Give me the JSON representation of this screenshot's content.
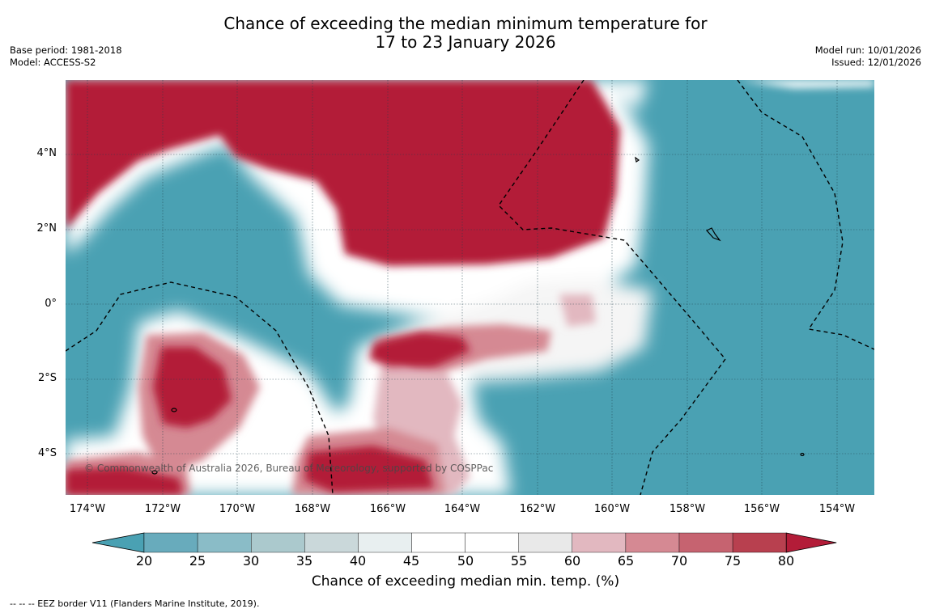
{
  "title": {
    "line1": "Chance of exceeding the median minimum temperature for",
    "line2": "17 to 23 January 2026"
  },
  "meta": {
    "base_period": "Base period: 1981-2018",
    "model": "Model: ACCESS-S2",
    "model_run": "Model run: 10/01/2026",
    "issued": "Issued: 12/01/2026"
  },
  "map": {
    "copyright": "© Commonwealth of Australia 2026, Bureau of Meteorology, supported by COSPPac",
    "lat_labels": [
      "4°N",
      "2°N",
      "0°",
      "2°S",
      "4°S"
    ],
    "lon_labels": [
      "174°W",
      "172°W",
      "170°W",
      "168°W",
      "166°W",
      "164°W",
      "162°W",
      "160°W",
      "158°W",
      "156°W",
      "154°W"
    ],
    "colors": {
      "below": "#4aa1b3",
      "above": "#b31c38",
      "neutral": "#ffffff"
    }
  },
  "colorbar": {
    "label": "Chance of exceeding median min. temp. (%)",
    "ticks": [
      "20",
      "25",
      "30",
      "35",
      "40",
      "45",
      "50",
      "55",
      "60",
      "65",
      "70",
      "75",
      "80"
    ],
    "colors": [
      "#4aa1b3",
      "#68abbc",
      "#8abcc7",
      "#abc9cd",
      "#cad8da",
      "#e8eff0",
      "#ffffff",
      "#ffffff",
      "#e9e9e9",
      "#e2b8c0",
      "#d58993",
      "#c66370",
      "#b8404f",
      "#b31c38"
    ]
  },
  "footnote": "--  --  -- EEZ border V11 (Flanders Marine Institute, 2019)."
}
